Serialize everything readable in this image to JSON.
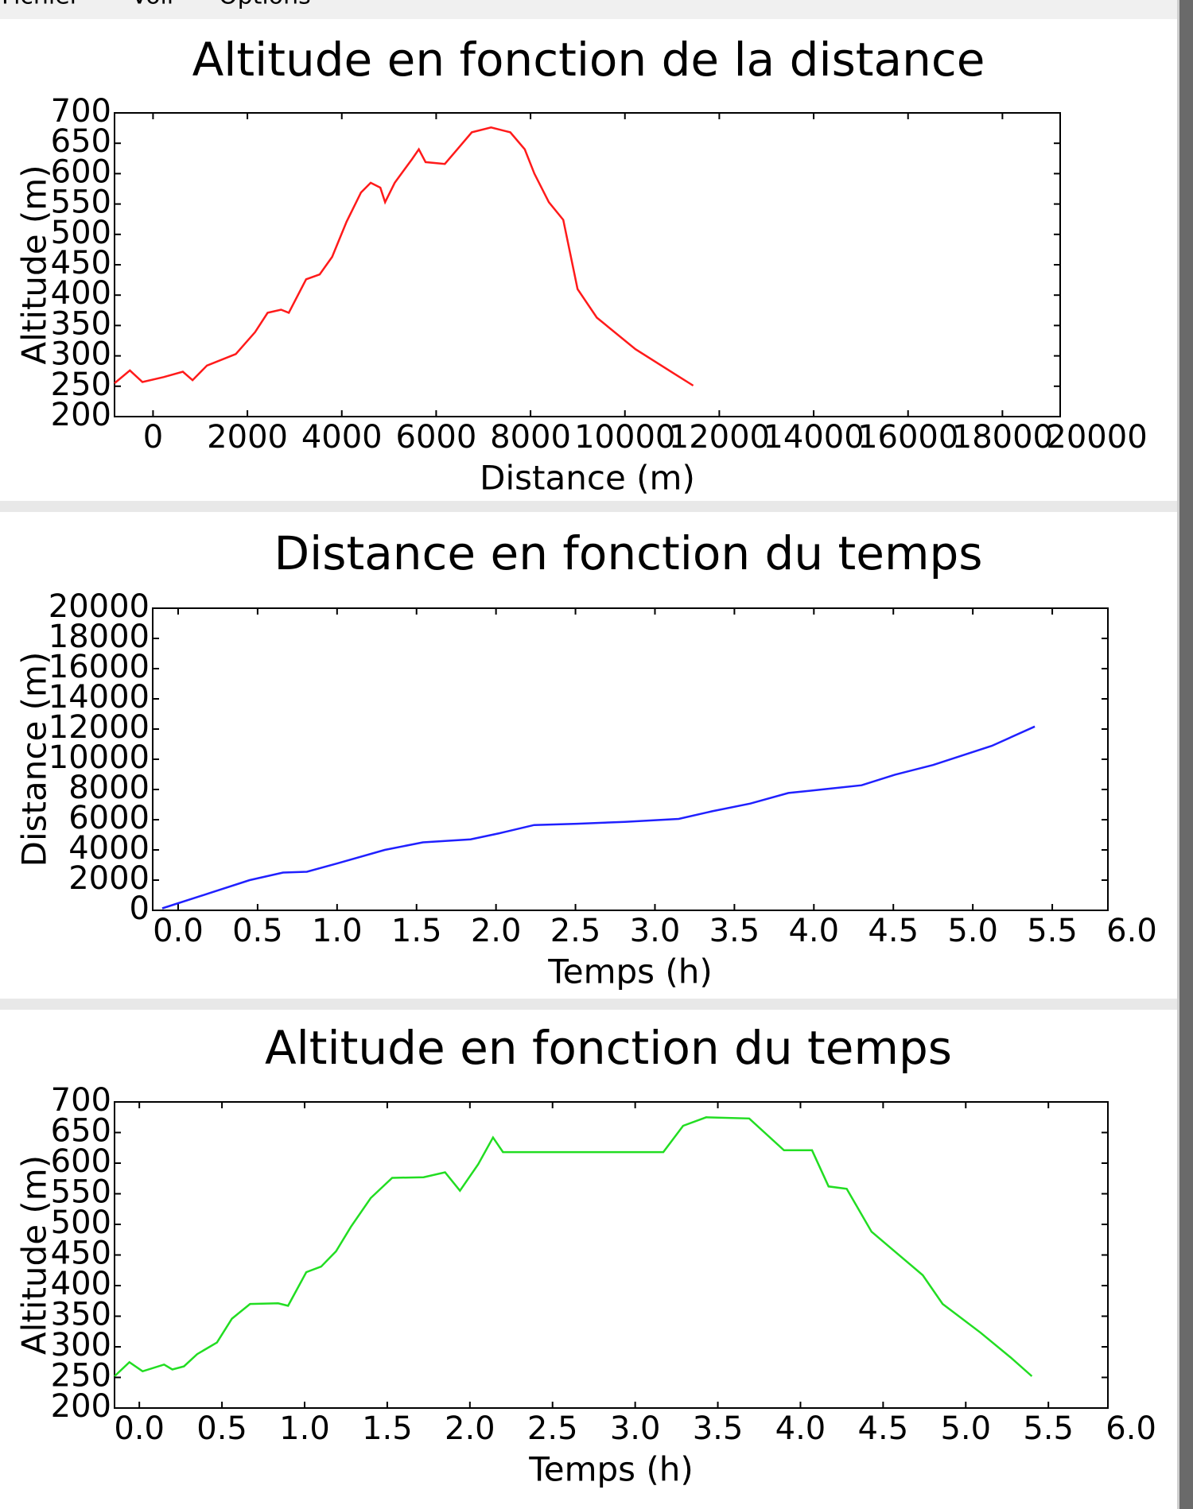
{
  "menu": [
    "Fichier",
    "Voir",
    "Options"
  ],
  "chart_data": [
    {
      "type": "line",
      "title": "Altitude en fonction de la distance",
      "x_label": "Distance (m)",
      "y_label": "Altitude (m)",
      "xlim": [
        -816,
        19224
      ],
      "ylim": [
        200,
        700
      ],
      "xticks": [
        0,
        2000,
        4000,
        6000,
        8000,
        10000,
        12000,
        14000,
        16000,
        18000,
        20000
      ],
      "yticks": [
        200,
        250,
        300,
        350,
        400,
        450,
        500,
        550,
        600,
        650,
        700
      ],
      "series": [
        {
          "color": "#ff1a1a",
          "x": [
            -816,
            -490,
            -224,
            224,
            632,
            837,
            1143,
            1755,
            2163,
            2428,
            2714,
            2877,
            3245,
            3531,
            3796,
            4102,
            4408,
            4612,
            4816,
            4918,
            5122,
            5490,
            5633,
            5776,
            6184,
            6449,
            6755,
            7163,
            7571,
            7877,
            8081,
            8388,
            8694,
            8996,
            9404,
            10224,
            11040,
            11448
          ],
          "values": [
            255,
            276,
            257,
            265,
            274,
            260,
            284,
            303,
            339,
            371,
            376,
            371,
            426,
            434,
            463,
            521,
            569,
            585,
            577,
            553,
            585,
            624,
            640,
            619,
            616,
            640,
            668,
            676,
            668,
            640,
            600,
            553,
            524,
            410,
            363,
            311,
            271,
            251
          ]
        }
      ]
    },
    {
      "type": "line",
      "title": "Distance en fonction du temps",
      "x_label": "Temps (h)",
      "y_label": "Distance (m)",
      "xlim": [
        -0.16,
        5.85
      ],
      "ylim": [
        0,
        20000
      ],
      "xticks": [
        {
          "value": 0,
          "label": "0.0"
        },
        0.5,
        {
          "value": 1,
          "label": "1.0"
        },
        1.5,
        {
          "value": 2,
          "label": "2.0"
        },
        2.5,
        {
          "value": 3,
          "label": "3.0"
        },
        3.5,
        {
          "value": 4,
          "label": "4.0"
        },
        4.5,
        {
          "value": 5,
          "label": "5.0"
        },
        5.5,
        {
          "value": 6,
          "label": "6.0"
        }
      ],
      "yticks": [
        0,
        2000,
        4000,
        6000,
        8000,
        10000,
        12000,
        14000,
        16000,
        18000,
        20000
      ],
      "series": [
        {
          "color": "#2020ff",
          "x": [
            -0.1,
            0.2,
            0.45,
            0.66,
            0.81,
            1.0,
            1.3,
            1.54,
            1.84,
            2.02,
            2.24,
            2.51,
            2.81,
            3.15,
            3.36,
            3.6,
            3.84,
            4.08,
            4.3,
            4.51,
            4.75,
            5.12,
            5.39
          ],
          "values": [
            130,
            1150,
            2000,
            2500,
            2550,
            3100,
            4000,
            4500,
            4700,
            5100,
            5650,
            5730,
            5860,
            6050,
            6560,
            7070,
            7770,
            8030,
            8280,
            8980,
            9620,
            10890,
            12170
          ]
        }
      ]
    },
    {
      "type": "line",
      "title": "Altitude en fonction du temps",
      "x_label": "Temps (h)",
      "y_label": "Altitude (m)",
      "xlim": [
        -0.15,
        5.86
      ],
      "ylim": [
        200,
        700
      ],
      "xticks": [
        {
          "value": 0,
          "label": "0.0"
        },
        0.5,
        {
          "value": 1,
          "label": "1.0"
        },
        1.5,
        {
          "value": 2,
          "label": "2.0"
        },
        2.5,
        {
          "value": 3,
          "label": "3.0"
        },
        3.5,
        {
          "value": 4,
          "label": "4.0"
        },
        4.5,
        {
          "value": 5,
          "label": "5.0"
        },
        5.5,
        {
          "value": 6,
          "label": "6.0"
        }
      ],
      "yticks": [
        200,
        250,
        300,
        350,
        400,
        450,
        500,
        550,
        600,
        650,
        700
      ],
      "series": [
        {
          "color": "#22dd22",
          "x": [
            -0.15,
            -0.06,
            0.02,
            0.15,
            0.2,
            0.27,
            0.35,
            0.47,
            0.56,
            0.67,
            0.84,
            0.9,
            1.01,
            1.1,
            1.19,
            1.28,
            1.4,
            1.53,
            1.72,
            1.85,
            1.94,
            2.05,
            2.14,
            2.2,
            2.65,
            3.17,
            3.29,
            3.43,
            3.69,
            3.9,
            4.07,
            4.17,
            4.28,
            4.43,
            4.57,
            4.74,
            4.86,
            5.09,
            5.27,
            5.4
          ],
          "values": [
            252,
            275,
            260,
            271,
            263,
            268,
            288,
            307,
            346,
            370,
            371,
            367,
            422,
            431,
            456,
            496,
            543,
            576,
            577,
            585,
            555,
            598,
            642,
            618,
            618,
            618,
            661,
            675,
            673,
            621,
            621,
            562,
            558,
            488,
            456,
            417,
            370,
            323,
            283,
            252
          ]
        }
      ]
    }
  ]
}
